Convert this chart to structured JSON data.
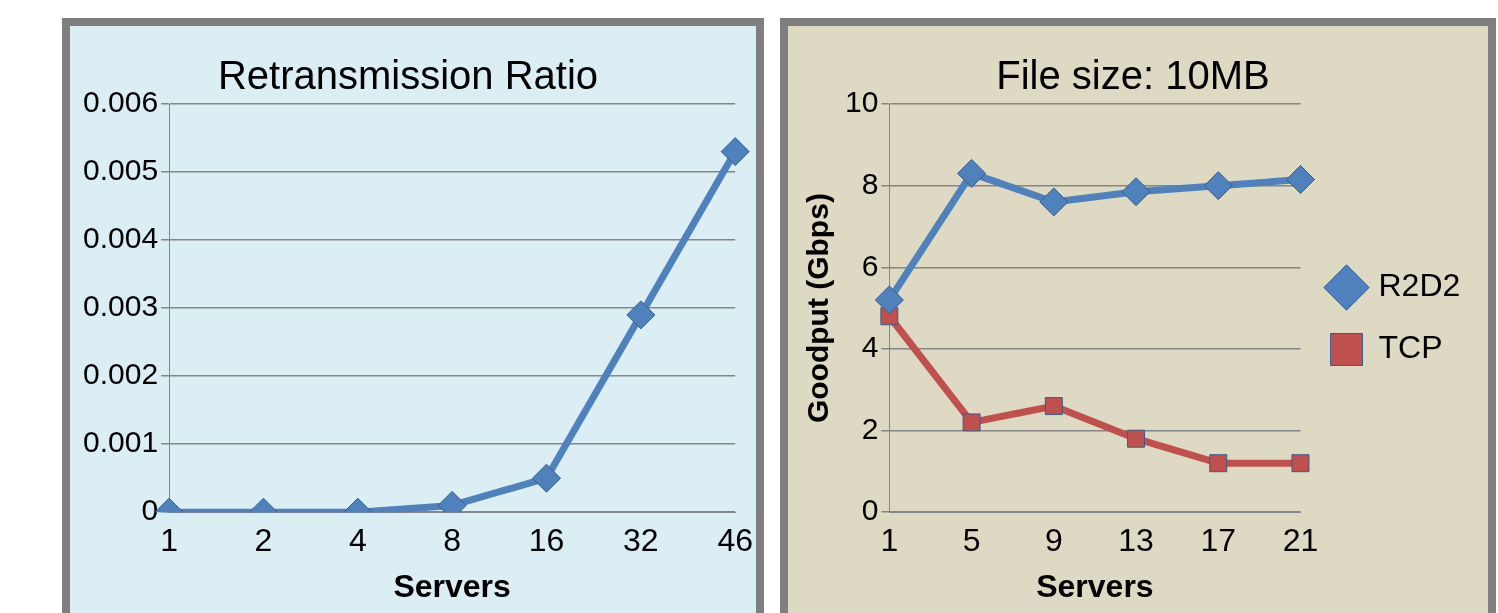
{
  "chart_data": [
    {
      "type": "line",
      "title": "Retransmission Ratio",
      "xlabel": "Servers",
      "categories": [
        "1",
        "2",
        "4",
        "8",
        "16",
        "32",
        "46"
      ],
      "series": [
        {
          "color": "#4f81bd",
          "values": [
            0,
            0,
            0,
            0.0001,
            0.0005,
            0.0029,
            0.0053
          ],
          "marker": "diamond"
        }
      ],
      "ylim": [
        0,
        0.006
      ],
      "yticks": [
        0,
        0.001,
        0.002,
        0.003,
        0.004,
        0.005,
        0.006
      ],
      "grid": "y",
      "legend": false
    },
    {
      "type": "line",
      "title": "File size: 10MB",
      "xlabel": "Servers",
      "ylabel": "Goodput (Gbps)",
      "categories": [
        "1",
        "5",
        "9",
        "13",
        "17",
        "21"
      ],
      "series": [
        {
          "name": "R2D2",
          "color": "#4f81bd",
          "values": [
            5.2,
            8.3,
            7.6,
            7.85,
            8.0,
            8.15
          ],
          "marker": "diamond"
        },
        {
          "name": "TCP",
          "color": "#c0504d",
          "values": [
            4.8,
            2.2,
            2.6,
            1.8,
            1.2,
            1.2
          ],
          "marker": "square"
        }
      ],
      "ylim": [
        0,
        10
      ],
      "yticks": [
        0,
        2,
        4,
        6,
        8,
        10
      ],
      "grid": "y",
      "legend": "right"
    }
  ]
}
